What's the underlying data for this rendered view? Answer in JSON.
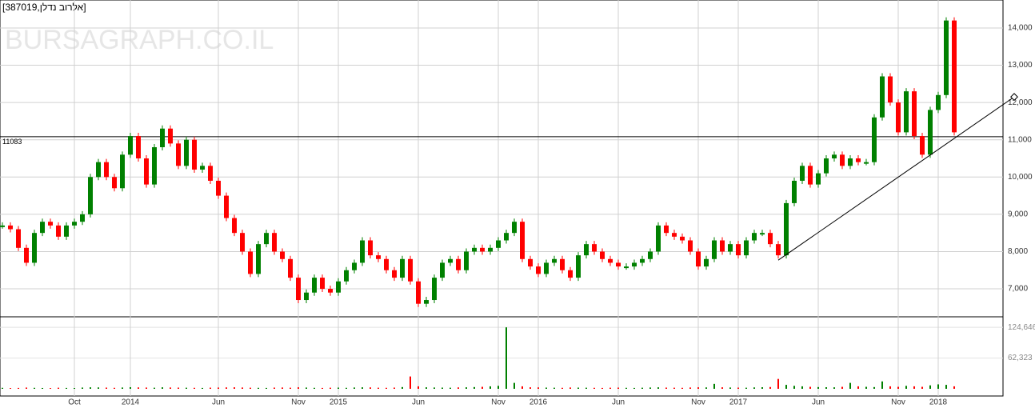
{
  "chart_data": {
    "type": "candlestick",
    "title": "[387019,אלרוב נדלן]",
    "watermark": "BURSAGRAPH.CO.IL",
    "categories": [
      null,
      null,
      null,
      null,
      null,
      null,
      null,
      null,
      null,
      "Oct",
      null,
      null,
      null,
      null,
      null,
      null,
      "2014",
      null,
      null,
      null,
      null,
      null,
      null,
      null,
      null,
      null,
      null,
      "Jun",
      null,
      null,
      null,
      null,
      null,
      null,
      null,
      null,
      null,
      "Nov",
      null,
      null,
      null,
      null,
      "2015",
      null,
      null,
      null,
      null,
      null,
      null,
      null,
      null,
      null,
      "Jun",
      null,
      null,
      null,
      null,
      null,
      null,
      null,
      null,
      null,
      "Nov",
      null,
      null,
      null,
      null,
      "2016",
      null,
      null,
      null,
      null,
      null,
      null,
      null,
      null,
      null,
      "Jun",
      null,
      null,
      null,
      null,
      null,
      null,
      null,
      null,
      null,
      "Nov",
      null,
      null,
      null,
      null,
      "2017",
      null,
      null,
      null,
      null,
      null,
      null,
      null,
      null,
      null,
      "Jun",
      null,
      null,
      null,
      null,
      null,
      null,
      null,
      null,
      null,
      "Nov",
      null,
      null,
      null,
      null,
      "2018",
      null,
      null
    ],
    "values": [
      8700,
      8600,
      8100,
      7700,
      8500,
      8800,
      8700,
      8400,
      8700,
      8800,
      9000,
      10000,
      10400,
      10000,
      9700,
      10600,
      11100,
      10500,
      9800,
      10800,
      11300,
      10900,
      10300,
      11000,
      10200,
      10300,
      9900,
      9500,
      8900,
      8500,
      8000,
      7400,
      8200,
      8500,
      8000,
      7800,
      7300,
      6700,
      6900,
      7300,
      7000,
      6900,
      7200,
      7500,
      7700,
      8300,
      7900,
      7800,
      7500,
      7300,
      7800,
      7200,
      6600,
      6700,
      7300,
      7700,
      7800,
      7500,
      8000,
      8100,
      8000,
      8100,
      8300,
      8500,
      8800,
      7800,
      7600,
      7400,
      7700,
      7800,
      7500,
      7300,
      7900,
      8200,
      8000,
      7800,
      7700,
      7600,
      7600,
      7700,
      7800,
      8000,
      8700,
      8500,
      8400,
      8300,
      8000,
      7600,
      7800,
      8300,
      8000,
      8200,
      7900,
      8300,
      8500,
      8500,
      8200,
      7900,
      9300,
      9900,
      10300,
      9800,
      10100,
      10500,
      10600,
      10300,
      10500,
      10400,
      10400,
      11600,
      12700,
      12000,
      11200,
      12300,
      11100,
      10600,
      11800,
      12200,
      14200,
      11200
    ],
    "volume": [
      2000,
      1500,
      1800,
      2500,
      2000,
      1700,
      1500,
      2200,
      1800,
      1600,
      2500,
      3000,
      2800,
      2400,
      2000,
      2600,
      3200,
      2800,
      2500,
      2200,
      3000,
      2600,
      2400,
      2200,
      2000,
      1800,
      2300,
      2500,
      2800,
      3000,
      2600,
      2200,
      2000,
      1800,
      2400,
      2600,
      2200,
      3000,
      2500,
      2000,
      1800,
      2200,
      2400,
      2000,
      2600,
      3000,
      2800,
      2200,
      2000,
      2400,
      3500,
      25000,
      5000,
      3000,
      2600,
      2400,
      2200,
      2800,
      3000,
      3500,
      4000,
      5000,
      6000,
      124646,
      12000,
      5000,
      3000,
      2800,
      2400,
      2200,
      2000,
      2600,
      2400,
      2200,
      2000,
      1800,
      2200,
      2400,
      2000,
      1800,
      2200,
      2600,
      3000,
      2400,
      2200,
      2000,
      2600,
      3000,
      2800,
      10000,
      3000,
      2600,
      2400,
      2200,
      2800,
      3200,
      3600,
      20000,
      8000,
      6000,
      5000,
      4000,
      3500,
      3200,
      3000,
      4000,
      12000,
      5000,
      4000,
      3500,
      15000,
      5000,
      4000,
      6000,
      5000,
      4000,
      7000,
      9000,
      8000,
      5000
    ],
    "up_color": "#008000",
    "down_color": "#ff0000",
    "ylim": [
      6250,
      14750
    ],
    "yticks": [
      {
        "value": 7000,
        "label": "7,000"
      },
      {
        "value": 8000,
        "label": "8,000"
      },
      {
        "value": 9000,
        "label": "9,000"
      },
      {
        "value": 10000,
        "label": "10,000"
      },
      {
        "value": 11000,
        "label": "11,000"
      },
      {
        "value": 12000,
        "label": "12,000"
      },
      {
        "value": 13000,
        "label": "13,000"
      },
      {
        "value": 14000,
        "label": "14,000"
      }
    ],
    "volume_ylim": [
      0,
      146000
    ],
    "volume_yticks": [
      {
        "value": 62323,
        "label": "62,323"
      },
      {
        "value": 124646,
        "label": "124,646"
      }
    ],
    "reference_line": 11083,
    "trendline": [
      7770,
      12150
    ],
    "grid": true
  }
}
